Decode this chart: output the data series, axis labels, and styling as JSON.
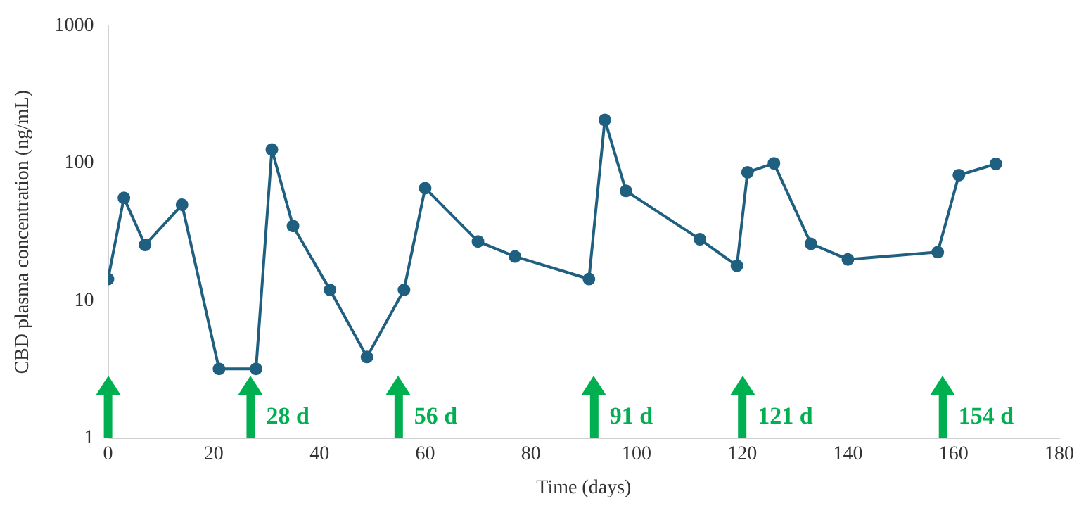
{
  "chart_data": {
    "type": "line",
    "xlabel": "Time (days)",
    "ylabel": "CBD plasma concentration (ng/mL)",
    "x": [
      0,
      3,
      7,
      14,
      21,
      28,
      31,
      35,
      42,
      49,
      56,
      60,
      70,
      77,
      91,
      94,
      98,
      112,
      119,
      121,
      126,
      133,
      140,
      157,
      161,
      168
    ],
    "series": [
      {
        "color": "#1f5f80",
        "values": [
          14.4,
          56,
          25.5,
          50,
          3.2,
          3.2,
          126,
          35,
          12,
          3.9,
          12,
          66,
          27,
          21,
          14.4,
          207,
          63,
          28,
          18,
          86,
          100,
          26,
          20,
          22.6,
          82,
          99
        ]
      }
    ],
    "xlim": [
      0,
      180
    ],
    "xticks": [
      0,
      20,
      40,
      60,
      80,
      100,
      120,
      140,
      160,
      180
    ],
    "ylim": [
      1,
      1000
    ],
    "yticks": [
      1,
      10,
      100,
      1000
    ],
    "log": "y",
    "grid": false,
    "legend": false,
    "marker": "circle",
    "line_style": "solid",
    "ref_lines": [
      {
        "axis": "x",
        "value": 0,
        "color": "#00b050"
      },
      {
        "axis": "x",
        "value": 27,
        "label": "28 d",
        "color": "#00b050"
      },
      {
        "axis": "x",
        "value": 55,
        "label": "56 d",
        "color": "#00b050"
      },
      {
        "axis": "x",
        "value": 92,
        "label": "91 d",
        "color": "#00b050"
      },
      {
        "axis": "x",
        "value": 120,
        "label": "121 d",
        "color": "#00b050"
      },
      {
        "axis": "x",
        "value": 158,
        "label": "154 d",
        "color": "#00b050"
      }
    ]
  }
}
